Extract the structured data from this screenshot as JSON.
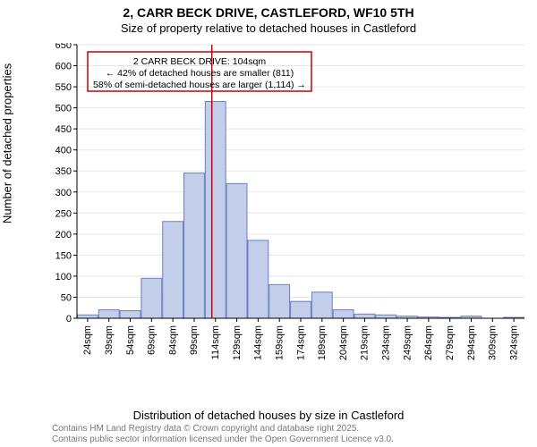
{
  "title_line1": "2, CARR BECK DRIVE, CASTLEFORD, WF10 5TH",
  "title_line2": "Size of property relative to detached houses in Castleford",
  "y_axis_label": "Number of detached properties",
  "x_axis_label": "Distribution of detached houses by size in Castleford",
  "footnote_line1": "Contains HM Land Registry data © Crown copyright and database right 2025.",
  "footnote_line2": "Contains public sector information licensed under the Open Government Licence v3.0.",
  "chart": {
    "type": "histogram",
    "background_color": "#ffffff",
    "bar_fill": "#c2ceea",
    "bar_stroke": "#6b7fc2",
    "grid_color": "#e5e5e5",
    "axis_color": "#000000",
    "marker_line_color": "#cc0000",
    "annot_box_border": "#cc0000",
    "font_family": "Arial",
    "title_fontsize": 14,
    "subtitle_fontsize": 13,
    "axis_label_fontsize": 13,
    "tick_fontsize": 11,
    "annot_fontsize": 10.5,
    "footnote_fontsize": 10,
    "ylim": [
      0,
      650
    ],
    "ytick_step": 50,
    "x_categories": [
      "24sqm",
      "39sqm",
      "54sqm",
      "69sqm",
      "84sqm",
      "99sqm",
      "114sqm",
      "129sqm",
      "144sqm",
      "159sqm",
      "174sqm",
      "189sqm",
      "204sqm",
      "219sqm",
      "234sqm",
      "249sqm",
      "264sqm",
      "279sqm",
      "294sqm",
      "309sqm",
      "324sqm"
    ],
    "values": [
      8,
      20,
      18,
      95,
      230,
      345,
      515,
      320,
      185,
      80,
      40,
      62,
      20,
      10,
      8,
      5,
      3,
      2,
      5,
      0,
      2
    ],
    "marker_value_sqm": 104,
    "marker_bin_index": 6,
    "annotation": {
      "lines": [
        "2 CARR BECK DRIVE: 104sqm",
        "← 42% of detached houses are smaller (811)",
        "58% of semi-detached houses are larger (1,114) →"
      ]
    }
  }
}
